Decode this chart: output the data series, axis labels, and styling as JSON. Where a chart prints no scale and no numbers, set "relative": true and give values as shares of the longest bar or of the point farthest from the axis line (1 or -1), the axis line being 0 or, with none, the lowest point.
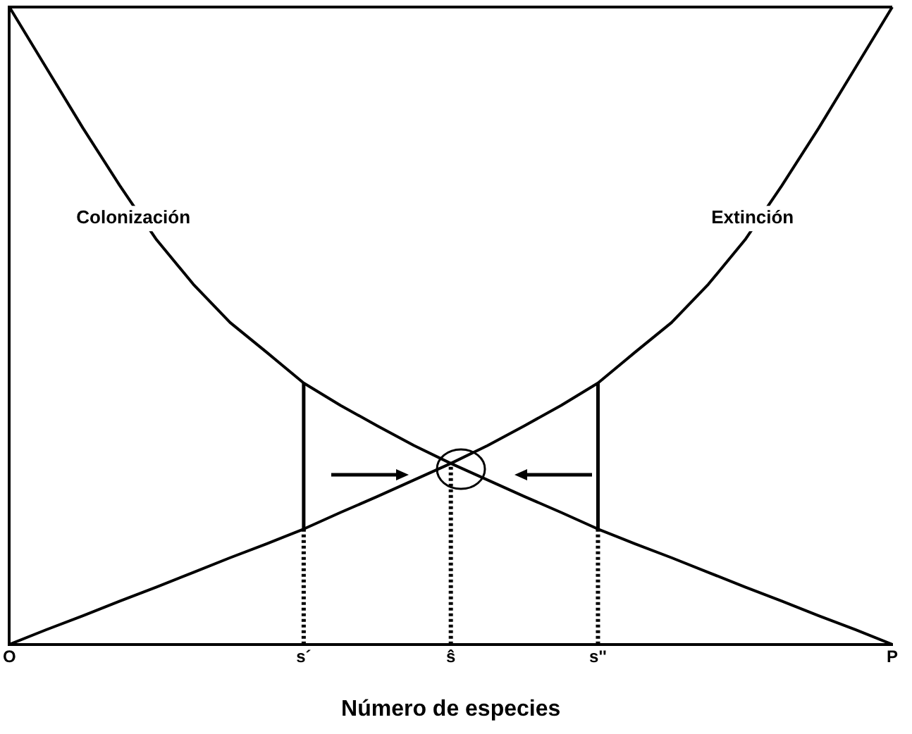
{
  "chart_data": {
    "type": "line",
    "relative": true,
    "xlabel": "Número de especies",
    "categories": [
      "O",
      null,
      null,
      null,
      null,
      null,
      null,
      null,
      "s´",
      null,
      null,
      null,
      "ŝ",
      null,
      null,
      null,
      "s''",
      null,
      null,
      null,
      null,
      null,
      null,
      null,
      "P"
    ],
    "grid": false,
    "legend": false,
    "marker": "none",
    "line_style": "solid",
    "series": [
      {
        "name": "Colonización",
        "color": "#000000",
        "values": [
          1,
          0.905,
          0.81,
          0.72,
          0.635,
          0.565,
          0.505,
          0.458,
          0.41,
          0.375,
          0.343,
          0.312,
          0.284,
          0.258,
          0.232,
          0.207,
          0.181,
          0.158,
          0.136,
          0.113,
          0.09,
          0.068,
          0.045,
          0.023,
          0
        ]
      },
      {
        "name": "Extinción",
        "color": "#000000",
        "values": [
          0,
          0.023,
          0.045,
          0.068,
          0.09,
          0.113,
          0.136,
          0.158,
          0.181,
          0.207,
          0.232,
          0.258,
          0.284,
          0.312,
          0.343,
          0.375,
          0.41,
          0.458,
          0.505,
          0.565,
          0.635,
          0.72,
          0.81,
          0.905,
          1
        ]
      }
    ]
  }
}
